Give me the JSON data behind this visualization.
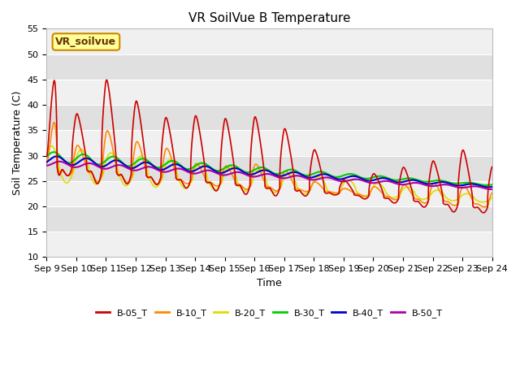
{
  "title": "VR SoilVue B Temperature",
  "xlabel": "Time",
  "ylabel": "Soil Temperature (C)",
  "ylim": [
    10,
    55
  ],
  "x_tick_labels": [
    "Sep 9",
    "Sep 10",
    "Sep 11",
    "Sep 12",
    "Sep 13",
    "Sep 14",
    "Sep 15",
    "Sep 16",
    "Sep 17",
    "Sep 18",
    "Sep 19",
    "Sep 20",
    "Sep 21",
    "Sep 22",
    "Sep 23",
    "Sep 24"
  ],
  "series_colors": {
    "B-05_T": "#CC0000",
    "B-10_T": "#FF8800",
    "B-20_T": "#DDDD00",
    "B-30_T": "#00CC00",
    "B-40_T": "#0000CC",
    "B-50_T": "#AA00AA"
  },
  "legend_labels": [
    "B-05_T",
    "B-10_T",
    "B-20_T",
    "B-30_T",
    "B-40_T",
    "B-50_T"
  ],
  "legend_colors": [
    "#CC0000",
    "#FF8800",
    "#DDDD00",
    "#00CC00",
    "#0000CC",
    "#AA00AA"
  ],
  "plot_bg_color": "#E8E8E8",
  "annotation_text": "VR_soilvue",
  "annotation_bg": "#FFFF99",
  "annotation_border": "#CC8800",
  "title_fontsize": 11,
  "axis_fontsize": 9,
  "tick_fontsize": 8,
  "linewidth": 1.2
}
